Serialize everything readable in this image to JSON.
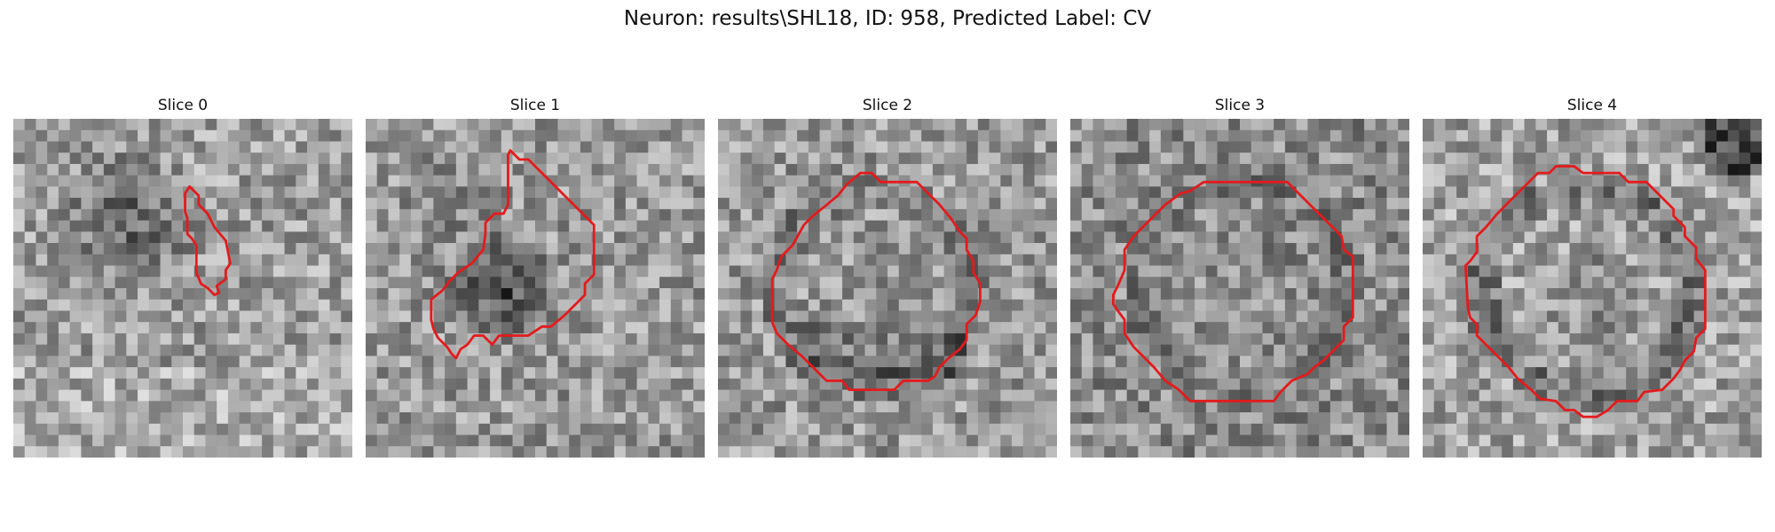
{
  "figure": {
    "title": "Neuron: results\\SHL18, ID: 958, Predicted Label: CV"
  },
  "colors": {
    "contour": "#e41a1c",
    "background": "#ffffff",
    "grayscale_low": "#000000",
    "grayscale_high": "#ffffff"
  },
  "image": {
    "colormap": "gray",
    "grid_size": 30
  },
  "panels": [
    {
      "title": "Slice 0"
    },
    {
      "title": "Slice 1"
    },
    {
      "title": "Slice 2"
    },
    {
      "title": "Slice 3"
    },
    {
      "title": "Slice 4"
    }
  ]
}
